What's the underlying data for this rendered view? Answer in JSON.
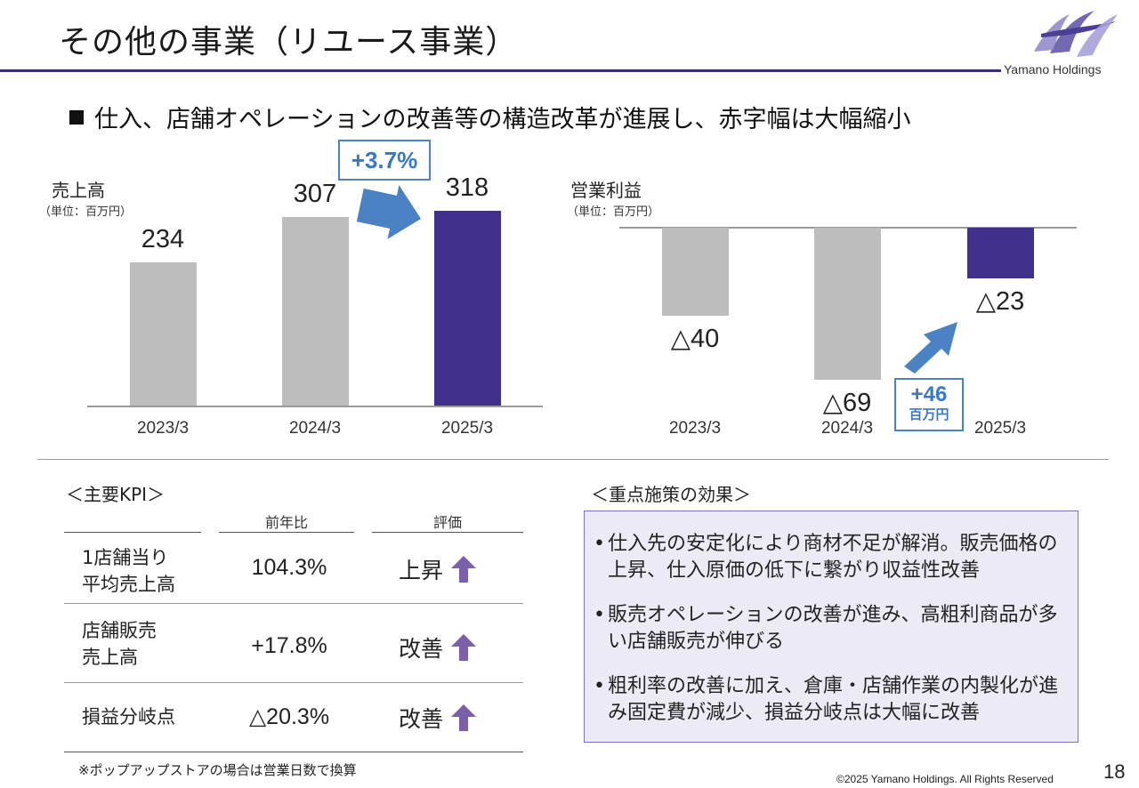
{
  "title": "その他の事業（リユース事業）",
  "logo": {
    "text": "Yamano Holdings"
  },
  "headline": "仕入、店舗オペレーションの改善等の構造改革が進展し、赤字幅は大幅縮小",
  "sales_chart": {
    "title": "売上高",
    "unit": "（単位：百万円）",
    "categories": [
      "2023/3",
      "2024/3",
      "2025/3"
    ],
    "values": [
      234,
      307,
      318
    ],
    "value_labels": [
      "234",
      "307",
      "318"
    ],
    "change_badge": "+3.7%",
    "colors": [
      "#bdbdbd",
      "#bdbdbd",
      "#41318c"
    ]
  },
  "profit_chart": {
    "title": "営業利益",
    "unit": "（単位：百万円）",
    "categories": [
      "2023/3",
      "2024/3",
      "2025/3"
    ],
    "values": [
      -40,
      -69,
      -23
    ],
    "value_labels": [
      "△40",
      "△69",
      "△23"
    ],
    "change_badge_value": "+46",
    "change_badge_unit": "百万円",
    "colors": [
      "#bdbdbd",
      "#bdbdbd",
      "#41318c"
    ]
  },
  "chart_data": [
    {
      "type": "bar",
      "title": "売上高",
      "ylabel": "（単位：百万円）",
      "categories": [
        "2023/3",
        "2024/3",
        "2025/3"
      ],
      "values": [
        234,
        307,
        318
      ],
      "annotations": [
        "+3.7%"
      ]
    },
    {
      "type": "bar",
      "title": "営業利益",
      "ylabel": "（単位：百万円）",
      "categories": [
        "2023/3",
        "2024/3",
        "2025/3"
      ],
      "values": [
        -40,
        -69,
        -23
      ],
      "annotations": [
        "+46 百万円"
      ]
    }
  ],
  "kpi": {
    "heading": "＜主要KPI＞",
    "col_yoy": "前年比",
    "col_eval": "評価",
    "rows": [
      {
        "name": "1店舗当り\n平均売上高",
        "yoy": "104.3%",
        "eval": "上昇"
      },
      {
        "name": "店舗販売\n売上高",
        "yoy": "+17.8%",
        "eval": "改善"
      },
      {
        "name": "損益分岐点",
        "yoy": "△20.3%",
        "eval": "改善"
      }
    ],
    "arrow_color": "#7b5fa8"
  },
  "effects": {
    "heading": "＜重点施策の効果＞",
    "items": [
      "仕入先の安定化により商材不足が解消。販売価格の上昇、仕入原価の低下に繋がり収益性改善",
      "販売オペレーションの改善が進み、高粗利商品が多い店舗販売が伸びる",
      "粗利率の改善に加え、倉庫・店舗作業の内製化が進み固定費が減少、損益分岐点は大幅に改善"
    ]
  },
  "footnote": "※ポップアップストアの場合は営業日数で換算",
  "copyright": "©2025 Yamano Holdings. All Rights Reserved",
  "page_number": "18"
}
